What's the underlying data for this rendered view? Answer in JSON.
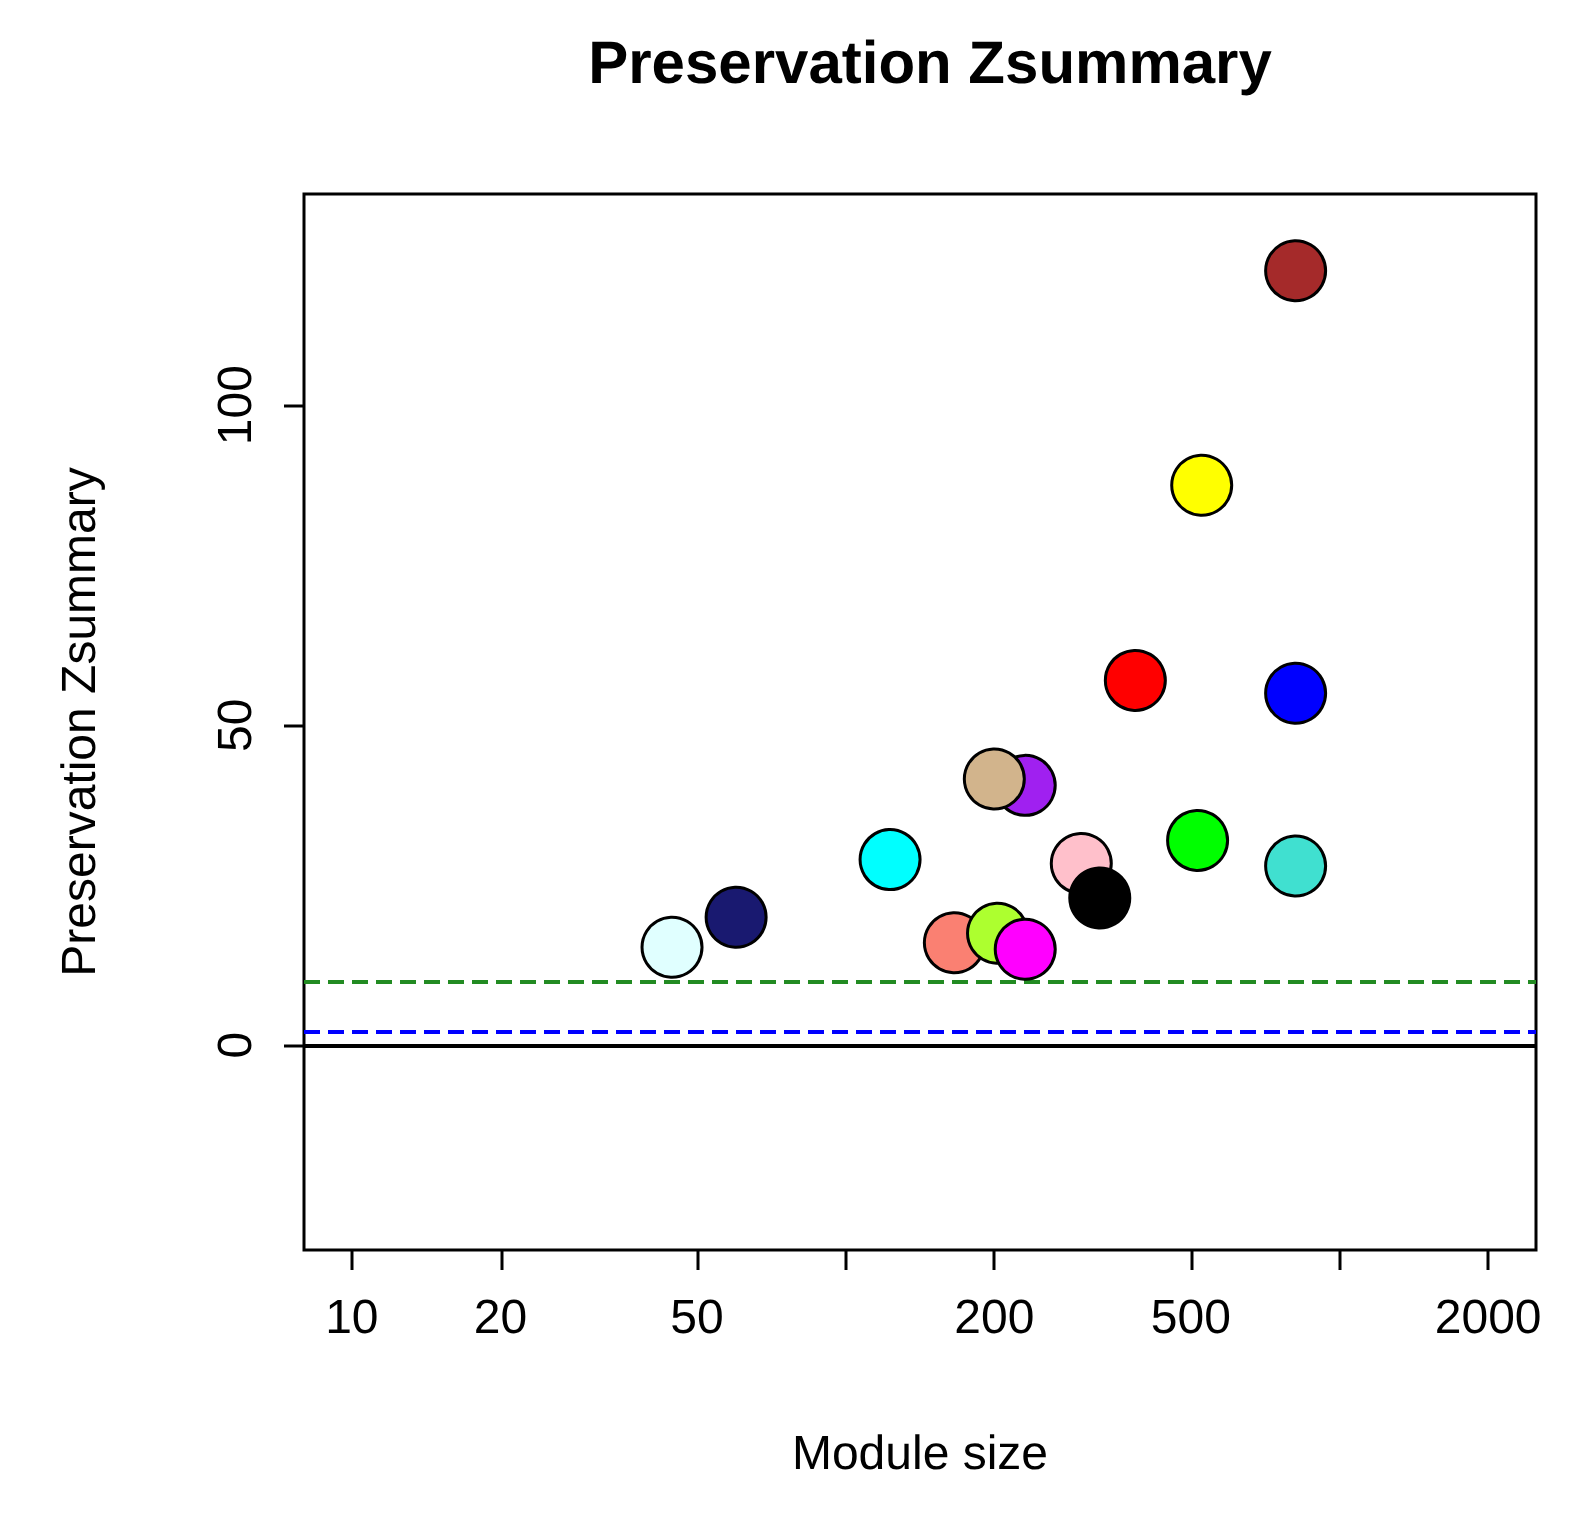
{
  "chart_data": {
    "type": "scatter",
    "title": "Preservation Zsummary",
    "xlabel": "Module size",
    "ylabel": "Preservation Zsummary",
    "log": "x",
    "xlim": [
      8,
      2500
    ],
    "ylim": [
      -32,
      133
    ],
    "xticks": [
      10,
      20,
      50,
      {
        "value": 100,
        "label": null
      },
      200,
      500,
      {
        "value": 1000,
        "label": null
      },
      2000
    ],
    "yticks": [
      0,
      50,
      100
    ],
    "grid": false,
    "marker": "circle",
    "x": [
      815,
      526,
      386,
      815,
      231,
      200,
      516,
      815,
      123,
      300,
      327,
      60,
      44.5,
      166,
      203,
      231
    ],
    "values": [
      121,
      87.5,
      57,
      55,
      40.6,
      41.6,
      32,
      28,
      29,
      28.4,
      23,
      20,
      15.3,
      16,
      17.5,
      15
    ],
    "colors": [
      "#a52a2a",
      "#ffff00",
      "#ff0000",
      "#0000ff",
      "#a020f0",
      "#d2b48c",
      "#00ff00",
      "#40e0d0",
      "#00ffff",
      "#ffc0cb",
      "#000000",
      "#191970",
      "#e0ffff",
      "#fa8072",
      "#adff2f",
      "#ff00ff"
    ],
    "ref_lines": [
      {
        "axis": "y",
        "value": 10,
        "color": "#228b22",
        "line_style": "dashed"
      },
      {
        "axis": "y",
        "value": 2,
        "color": "#0000ff",
        "line_style": "dashed"
      },
      {
        "axis": "y",
        "value": 0,
        "color": "#000000",
        "line_style": "solid"
      }
    ]
  }
}
